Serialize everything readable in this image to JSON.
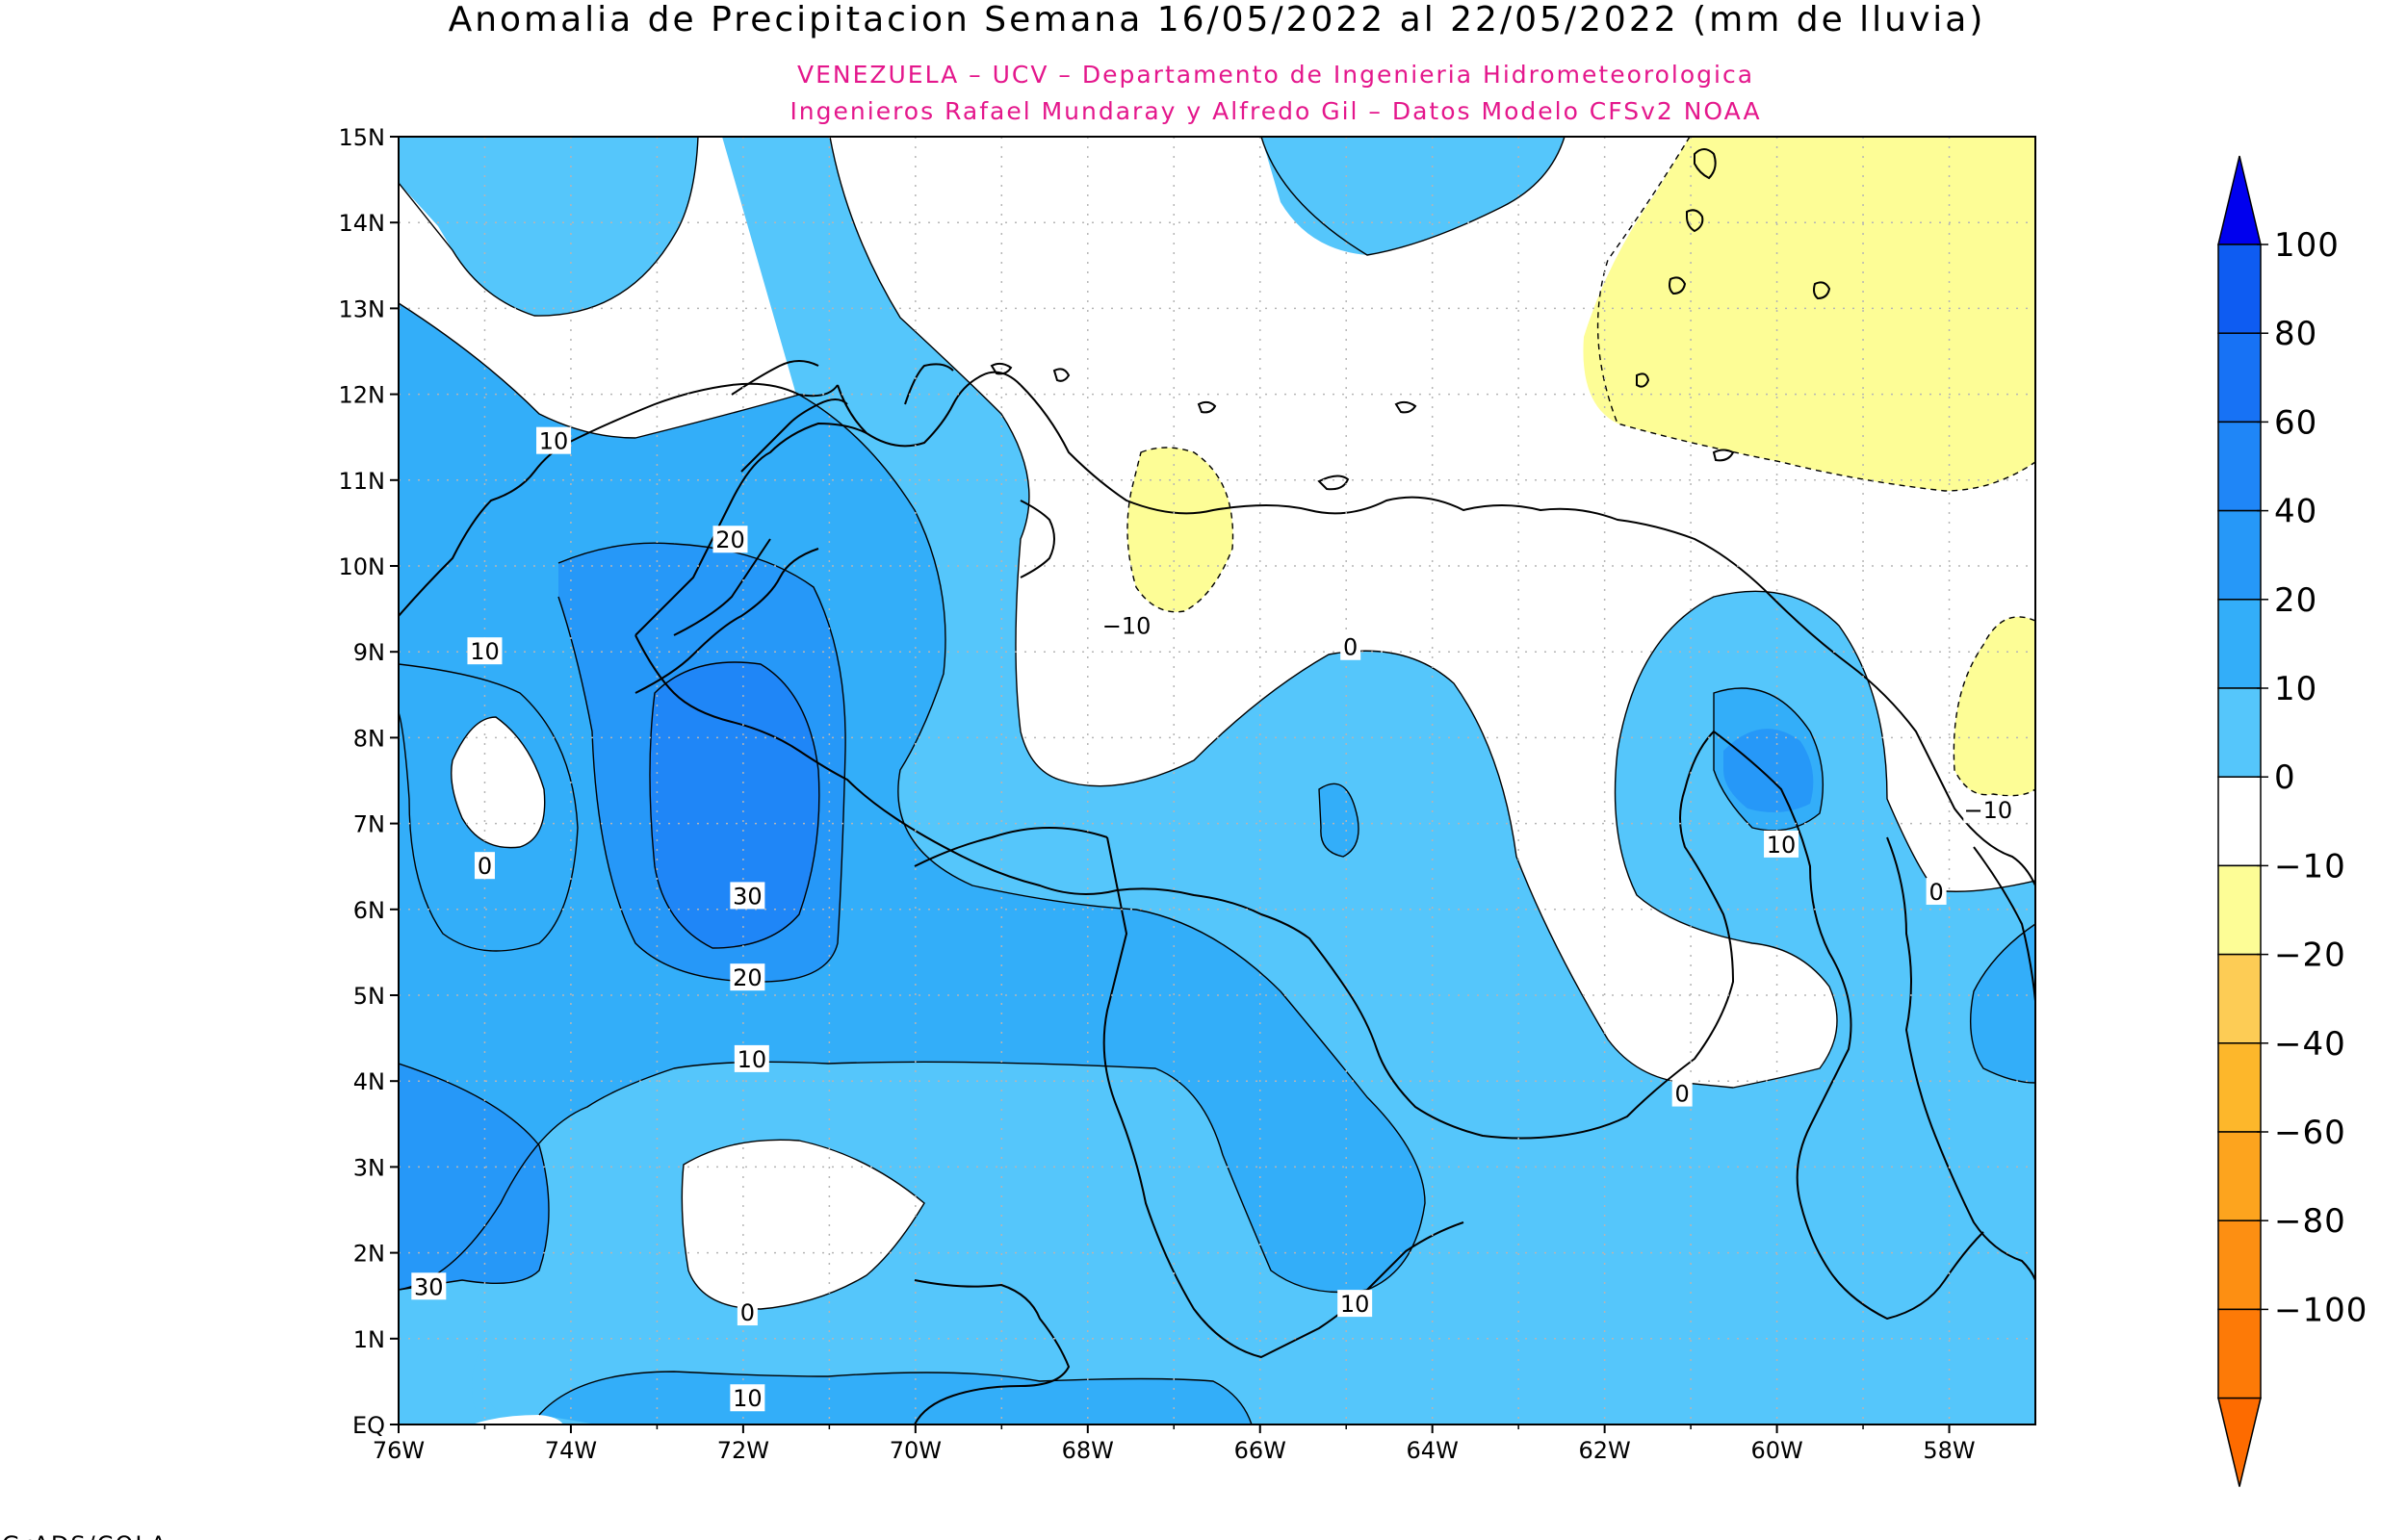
{
  "title": "Anomalia de Precipitacion Semana 16/05/2022 al 22/05/2022 (mm de lluvia)",
  "subtitle_line1": "VENEZUELA – UCV – Departamento de Ingenieria Hidrometeorologica",
  "subtitle_line2": "Ingenieros Rafael Mundaray y Alfredo Gil – Datos Modelo CFSv2 NOAA",
  "subtitle_color": "#e4178c",
  "footer": "GrADS/COLA",
  "map": {
    "lon_range": [
      -76,
      -57
    ],
    "lat_range": [
      0,
      15
    ],
    "x_ticks": [
      "76W",
      "74W",
      "72W",
      "70W",
      "68W",
      "66W",
      "64W",
      "62W",
      "60W",
      "58W"
    ],
    "y_ticks": [
      "EQ",
      "1N",
      "2N",
      "3N",
      "4N",
      "5N",
      "6N",
      "7N",
      "8N",
      "9N",
      "10N",
      "11N",
      "12N",
      "13N",
      "14N",
      "15N"
    ],
    "grid": true
  },
  "colorbar": {
    "labels": [
      "100",
      "80",
      "60",
      "40",
      "20",
      "10",
      "0",
      "−10",
      "−20",
      "−40",
      "−60",
      "−80",
      "−100"
    ],
    "colors": [
      "#0e5cf2",
      "#1772f5",
      "#1f86f7",
      "#2698f8",
      "#33aef9",
      "#55c6fb",
      "#ffffff",
      "#fdfd96",
      "#fdcc55",
      "#fdb72b",
      "#fda41e",
      "#fd8f12",
      "#fd7a07"
    ],
    "top_triangle_color": "#0000ee",
    "bottom_triangle_color": "#fd6b00"
  },
  "contour_labels": [
    {
      "text": "10",
      "lon": -74.2,
      "lat": 11.45
    },
    {
      "text": "20",
      "lon": -72.15,
      "lat": 10.3
    },
    {
      "text": "10",
      "lon": -75.0,
      "lat": 9.0
    },
    {
      "text": "0",
      "lon": -75.0,
      "lat": 6.5
    },
    {
      "text": "30",
      "lon": -71.95,
      "lat": 6.15
    },
    {
      "text": "20",
      "lon": -71.95,
      "lat": 5.2
    },
    {
      "text": "10",
      "lon": -71.9,
      "lat": 4.25
    },
    {
      "text": "0",
      "lon": -71.95,
      "lat": 1.3
    },
    {
      "text": "30",
      "lon": -75.65,
      "lat": 1.6
    },
    {
      "text": "10",
      "lon": -71.95,
      "lat": 0.3
    },
    {
      "text": "−10",
      "lon": -67.55,
      "lat": 9.3
    },
    {
      "text": "0",
      "lon": -64.95,
      "lat": 9.05
    },
    {
      "text": "10",
      "lon": -64.9,
      "lat": 1.4
    },
    {
      "text": "10",
      "lon": -59.95,
      "lat": 6.75
    },
    {
      "text": "0",
      "lon": -58.15,
      "lat": 6.2
    },
    {
      "text": "0",
      "lon": -61.1,
      "lat": 3.85
    },
    {
      "text": "−10",
      "lon": -57.55,
      "lat": 7.15
    }
  ]
}
